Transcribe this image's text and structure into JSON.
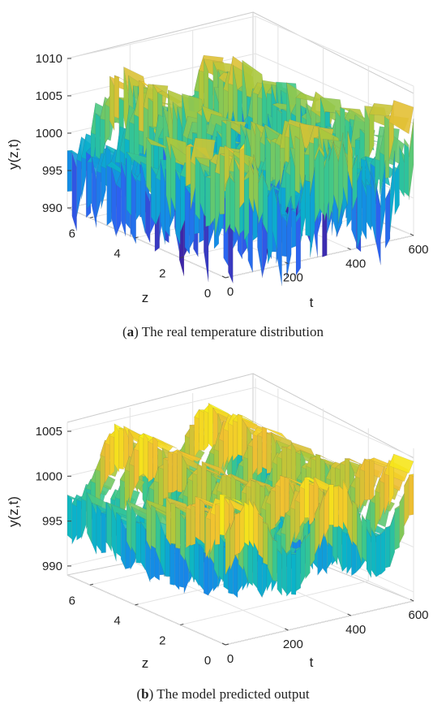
{
  "chart_data": [
    {
      "type": "surface3d",
      "panel": "a",
      "caption_letter": "a",
      "caption_text": " The real temperature distribution",
      "zlabel": "y(z,t)",
      "xlabel": "t",
      "ylabel": "z",
      "z_ticks": [
        "990",
        "995",
        "1000",
        "1005",
        "1010"
      ],
      "t_ticks": [
        "0",
        "200",
        "400",
        "600"
      ],
      "zaxis_ticks": [
        "0",
        "2",
        "4",
        "6"
      ],
      "t_range": [
        0,
        600
      ],
      "z_range": [
        0,
        7
      ],
      "y_range": [
        990,
        1010
      ],
      "surface_profile": {
        "base": 1000,
        "amplitude": 4,
        "noise": 5,
        "smooth": false
      },
      "grid": true
    },
    {
      "type": "surface3d",
      "panel": "b",
      "caption_letter": "b",
      "caption_text": " The model predicted output",
      "zlabel": "y(z,t)",
      "xlabel": "t",
      "ylabel": "z",
      "z_ticks": [
        "990",
        "995",
        "1000",
        "1005"
      ],
      "t_ticks": [
        "0",
        "200",
        "400",
        "600"
      ],
      "zaxis_ticks": [
        "0",
        "2",
        "4",
        "6"
      ],
      "t_range": [
        0,
        600
      ],
      "z_range": [
        0,
        7
      ],
      "y_range": [
        989,
        1006
      ],
      "surface_profile": {
        "base": 999.5,
        "amplitude": 3.5,
        "noise": 1.2,
        "smooth": true
      },
      "grid": true
    }
  ]
}
